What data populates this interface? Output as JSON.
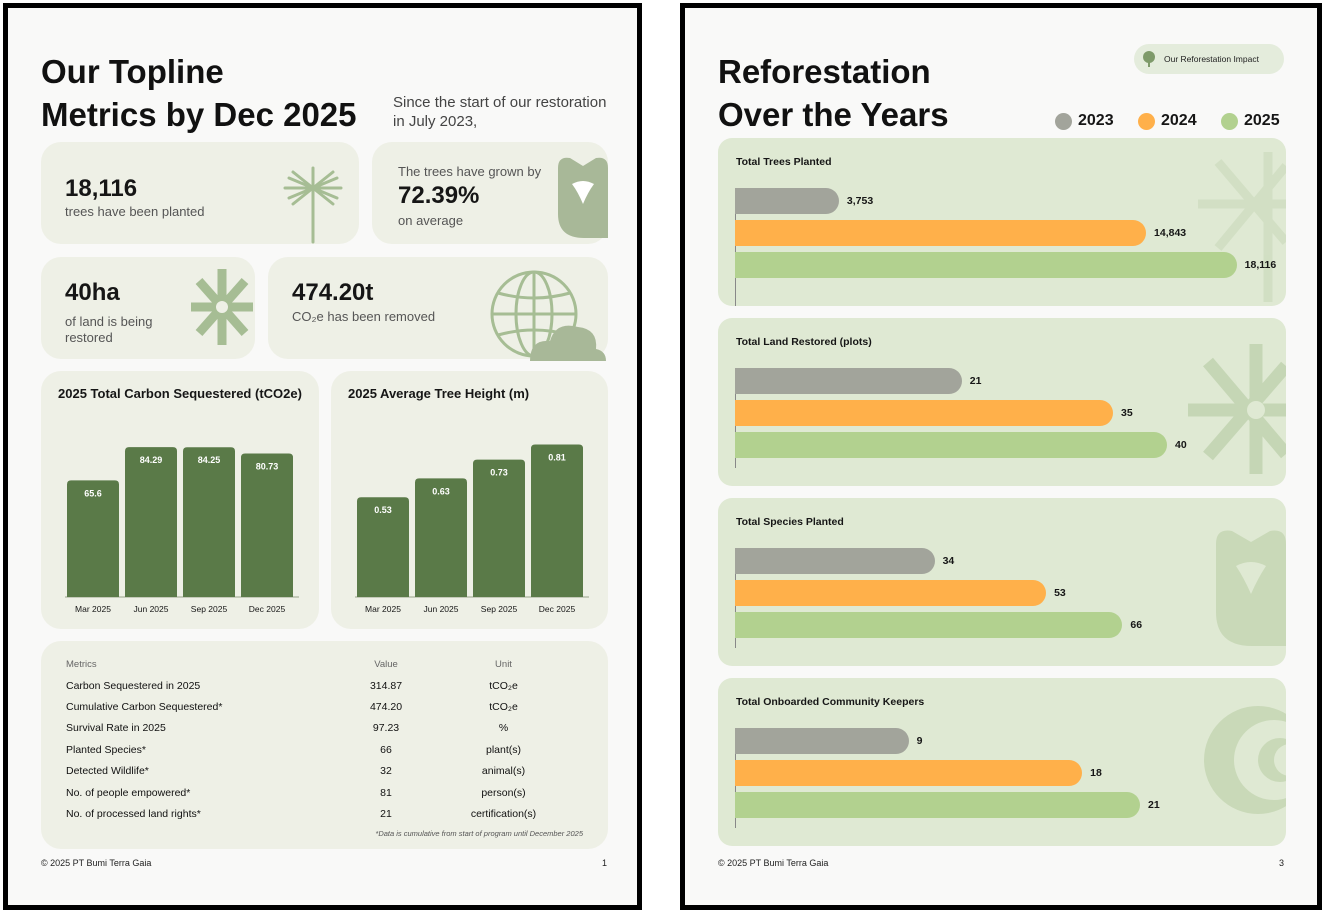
{
  "left": {
    "title_line1": "Our Topline",
    "title_line2": "Metrics by Dec 2025",
    "subtitle": "Since the start of our restoration in July 2023,",
    "card_trees": {
      "value": "18,116",
      "text": "trees have been planted",
      "icon": "tree-sparkle-icon"
    },
    "card_growth": {
      "pre": "The trees have grown by",
      "value": "72.39%",
      "post": "on average",
      "icon": "tulip-icon"
    },
    "card_land": {
      "value": "40ha",
      "text": "of land is being restored",
      "icon": "asterisk-star-icon"
    },
    "card_co2": {
      "value": "474.20t",
      "text": "CO₂e has been removed",
      "icon": "globe-cloud-icon"
    },
    "footer": "© 2025 PT Bumi Terra Gaia",
    "page_number": "1",
    "table": {
      "headers": [
        "Metrics",
        "Value",
        "Unit"
      ],
      "rows": [
        [
          "Carbon Sequestered in 2025",
          "314.87",
          "tCO₂e"
        ],
        [
          "Cumulative Carbon Sequestered*",
          "474.20",
          "tCO₂e"
        ],
        [
          "Survival Rate in 2025",
          "97.23",
          "%"
        ],
        [
          "Planted Species*",
          "66",
          "plant(s)"
        ],
        [
          "Detected Wildlife*",
          "32",
          "animal(s)"
        ],
        [
          "No. of people empowered*",
          "81",
          "person(s)"
        ],
        [
          "No. of processed land rights*",
          "21",
          "certification(s)"
        ]
      ],
      "note": "*Data is cumulative from start of program until December 2025"
    }
  },
  "right": {
    "title_line1": "Reforestation",
    "title_line2": "Over the Years",
    "impact_label": "Our Reforestation Impact",
    "footer": "© 2025 PT Bumi Terra Gaia",
    "page_number": "3"
  },
  "colors": {
    "bar_dark_green": "#5a7a48",
    "y2023": "#a2a49b",
    "y2024": "#ffb04a",
    "y2025": "#b2d18f",
    "card_bg": "#eef0e6",
    "reforest_card_bg": "#dfe9d3"
  },
  "chart_data": [
    {
      "type": "bar",
      "title": "2025 Total Carbon Sequestered (tCO2e)",
      "categories": [
        "Mar 2025",
        "Jun 2025",
        "Sep 2025",
        "Dec 2025"
      ],
      "values": [
        65.6,
        84.29,
        84.25,
        80.73
      ],
      "value_labels": [
        "65.6",
        "84.29",
        "84.25",
        "80.73"
      ],
      "ylim": [
        0,
        90
      ]
    },
    {
      "type": "bar",
      "title": "2025 Average Tree Height (m)",
      "categories": [
        "Mar 2025",
        "Jun 2025",
        "Sep 2025",
        "Dec 2025"
      ],
      "values": [
        0.53,
        0.63,
        0.73,
        0.81
      ],
      "value_labels": [
        "0.53",
        "0.63",
        "0.73",
        "0.81"
      ],
      "ylim": [
        0,
        0.85
      ]
    },
    {
      "type": "bar",
      "orientation": "horizontal",
      "title": "Total Trees Planted",
      "categories": [
        "2023",
        "2024",
        "2025"
      ],
      "values": [
        3753,
        14843,
        18116
      ],
      "value_labels": [
        "3,753",
        "14,843",
        "18,116"
      ],
      "xlim": [
        0,
        19500
      ]
    },
    {
      "type": "bar",
      "orientation": "horizontal",
      "title": "Total Land Restored (plots)",
      "categories": [
        "2023",
        "2024",
        "2025"
      ],
      "values": [
        21,
        35,
        40
      ],
      "value_labels": [
        "21",
        "35",
        "40"
      ],
      "xlim": [
        0,
        50
      ]
    },
    {
      "type": "bar",
      "orientation": "horizontal",
      "title": "Total Species Planted",
      "categories": [
        "2023",
        "2024",
        "2025"
      ],
      "values": [
        34,
        53,
        66
      ],
      "value_labels": [
        "34",
        "53",
        "66"
      ],
      "xlim": [
        0,
        92
      ]
    },
    {
      "type": "bar",
      "orientation": "horizontal",
      "title": "Total Onboarded Community Keepers",
      "categories": [
        "2023",
        "2024",
        "2025"
      ],
      "values": [
        9,
        18,
        21
      ],
      "value_labels": [
        "9",
        "18",
        "21"
      ],
      "xlim": [
        0,
        28
      ]
    }
  ],
  "legend": [
    {
      "label": "2023",
      "color": "#a2a49b"
    },
    {
      "label": "2024",
      "color": "#ffb04a"
    },
    {
      "label": "2025",
      "color": "#b2d18f"
    }
  ]
}
